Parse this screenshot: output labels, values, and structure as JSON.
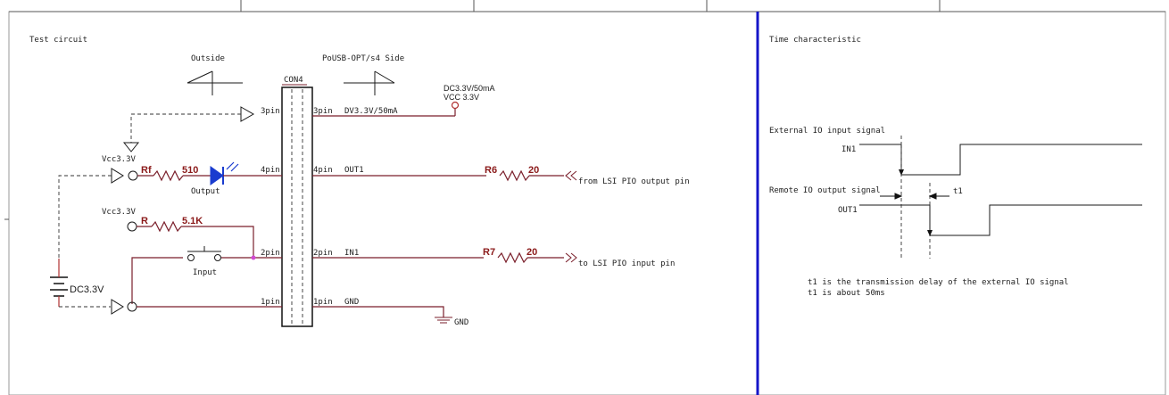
{
  "left_panel": {
    "title": "Test circuit",
    "outside_label": "Outside",
    "side_label": "PoUSB-OPT/s4 Side",
    "connector_label": "CON4",
    "pins_left": [
      "3pin",
      "4pin",
      "2pin",
      "1pin"
    ],
    "pins_right": [
      "3pin",
      "4pin",
      "2pin",
      "1pin"
    ],
    "net_labels": [
      "DV3.3V/50mA",
      "OUT1",
      "IN1",
      "GND"
    ],
    "dc_label": "DC3.3V/50mA",
    "vcc_label": "VCC 3.3V",
    "vcc_left_1": "Vcc3.3V",
    "vcc_left_2": "Vcc3.3V",
    "rf_label": "Rf",
    "rf_value": "510",
    "output_label": "Output",
    "r_label": "R",
    "r_value": "5.1K",
    "input_label": "Input",
    "battery_label": "DC3.3V",
    "r6_label": "R6",
    "r6_value": "20",
    "r7_label": "R7",
    "r7_value": "20",
    "from_label": "from LSI PIO output pin",
    "to_label": "to LSI PIO input pin",
    "gnd_label": "GND"
  },
  "right_panel": {
    "title": "Time characteristic",
    "ext_signal": "External IO input signal",
    "in1": "IN1",
    "remote_signal": "Remote IO output signal",
    "t1_marker": "t1",
    "out1": "OUT1",
    "note_line1": "t1 is the transmission delay of the external IO signal",
    "note_line2": "t1 is about 50ms"
  },
  "colors": {
    "divider": "#1515c8",
    "wire": "#7a1f2b",
    "led": "#1a3ccf",
    "junction": "#d14bd1"
  }
}
